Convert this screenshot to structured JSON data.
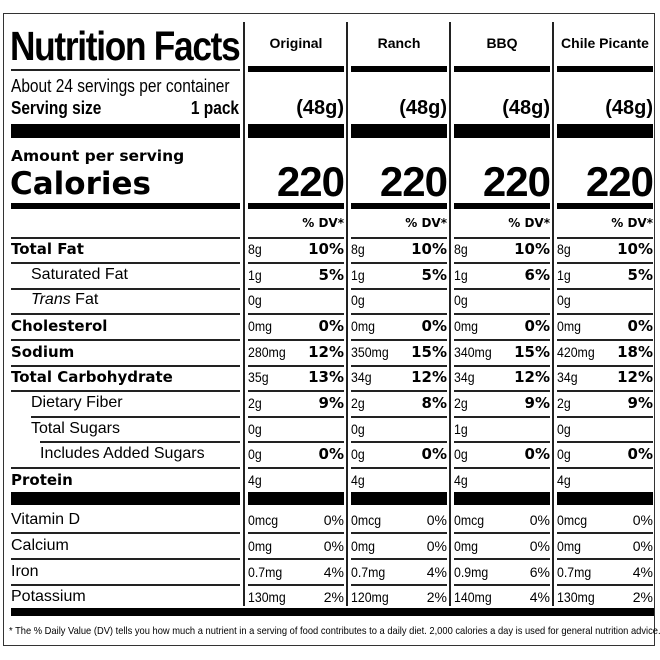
{
  "label": {
    "title": "Nutrition Facts",
    "servings_per_container": "About 24 servings per container",
    "serving_size_label": "Serving size",
    "serving_size_value": "1 pack",
    "amount_per_serving": "Amount per serving",
    "calories_label": "Calories",
    "dv_header": "% DV*",
    "nutrients": [
      {
        "name": "Total Fat",
        "style": "bold"
      },
      {
        "name": "Saturated Fat",
        "style": "indent"
      },
      {
        "name_italic": "Trans",
        "name_rest": " Fat",
        "style": "indent"
      },
      {
        "name": "Cholesterol",
        "style": "bold"
      },
      {
        "name": "Sodium",
        "style": "bold"
      },
      {
        "name": "Total Carbohydrate",
        "style": "bold"
      },
      {
        "name": "Dietary Fiber",
        "style": "indent"
      },
      {
        "name": "Total Sugars",
        "style": "indent"
      },
      {
        "name": "Includes Added Sugars",
        "style": "indent2"
      },
      {
        "name": "Protein",
        "style": "bold"
      }
    ],
    "vitamins": [
      "Vitamin D",
      "Calcium",
      "Iron",
      "Potassium"
    ],
    "footnote": "* The % Daily Value (DV) tells you how much a nutrient in a serving of food contributes to a daily diet. 2,000 calories a day is used for general nutrition advice."
  },
  "columns": [
    {
      "flavor": "Original",
      "serving_grams": "(48g)",
      "calories": "220",
      "nutrients": [
        {
          "amt": "8g",
          "dv": "10%"
        },
        {
          "amt": "1g",
          "dv": "5%"
        },
        {
          "amt": "0g",
          "dv": ""
        },
        {
          "amt": "0mg",
          "dv": "0%"
        },
        {
          "amt": "280mg",
          "dv": "12%"
        },
        {
          "amt": "35g",
          "dv": "13%"
        },
        {
          "amt": "2g",
          "dv": "9%"
        },
        {
          "amt": "0g",
          "dv": ""
        },
        {
          "amt": "0g",
          "dv": "0%"
        },
        {
          "amt": "4g",
          "dv": ""
        }
      ],
      "vitamins": [
        {
          "amt": "0mcg",
          "dv": "0%"
        },
        {
          "amt": "0mg",
          "dv": "0%"
        },
        {
          "amt": "0.7mg",
          "dv": "4%"
        },
        {
          "amt": "130mg",
          "dv": "2%"
        }
      ]
    },
    {
      "flavor": "Ranch",
      "serving_grams": "(48g)",
      "calories": "220",
      "nutrients": [
        {
          "amt": "8g",
          "dv": "10%"
        },
        {
          "amt": "1g",
          "dv": "5%"
        },
        {
          "amt": "0g",
          "dv": ""
        },
        {
          "amt": "0mg",
          "dv": "0%"
        },
        {
          "amt": "350mg",
          "dv": "15%"
        },
        {
          "amt": "34g",
          "dv": "12%"
        },
        {
          "amt": "2g",
          "dv": "8%"
        },
        {
          "amt": "0g",
          "dv": ""
        },
        {
          "amt": "0g",
          "dv": "0%"
        },
        {
          "amt": "4g",
          "dv": ""
        }
      ],
      "vitamins": [
        {
          "amt": "0mcg",
          "dv": "0%"
        },
        {
          "amt": "0mg",
          "dv": "0%"
        },
        {
          "amt": "0.7mg",
          "dv": "4%"
        },
        {
          "amt": "120mg",
          "dv": "2%"
        }
      ]
    },
    {
      "flavor": "BBQ",
      "serving_grams": "(48g)",
      "calories": "220",
      "nutrients": [
        {
          "amt": "8g",
          "dv": "10%"
        },
        {
          "amt": "1g",
          "dv": "6%"
        },
        {
          "amt": "0g",
          "dv": ""
        },
        {
          "amt": "0mg",
          "dv": "0%"
        },
        {
          "amt": "340mg",
          "dv": "15%"
        },
        {
          "amt": "34g",
          "dv": "12%"
        },
        {
          "amt": "2g",
          "dv": "9%"
        },
        {
          "amt": "1g",
          "dv": ""
        },
        {
          "amt": "0g",
          "dv": "0%"
        },
        {
          "amt": "4g",
          "dv": ""
        }
      ],
      "vitamins": [
        {
          "amt": "0mcg",
          "dv": "0%"
        },
        {
          "amt": "0mg",
          "dv": "0%"
        },
        {
          "amt": "0.9mg",
          "dv": "6%"
        },
        {
          "amt": "140mg",
          "dv": "4%"
        }
      ]
    },
    {
      "flavor": "Chile Picante",
      "serving_grams": "(48g)",
      "calories": "220",
      "nutrients": [
        {
          "amt": "8g",
          "dv": "10%"
        },
        {
          "amt": "1g",
          "dv": "5%"
        },
        {
          "amt": "0g",
          "dv": ""
        },
        {
          "amt": "0mg",
          "dv": "0%"
        },
        {
          "amt": "420mg",
          "dv": "18%"
        },
        {
          "amt": "34g",
          "dv": "12%"
        },
        {
          "amt": "2g",
          "dv": "9%"
        },
        {
          "amt": "0g",
          "dv": ""
        },
        {
          "amt": "0g",
          "dv": "0%"
        },
        {
          "amt": "4g",
          "dv": ""
        }
      ],
      "vitamins": [
        {
          "amt": "0mcg",
          "dv": "0%"
        },
        {
          "amt": "0mg",
          "dv": "0%"
        },
        {
          "amt": "0.7mg",
          "dv": "4%"
        },
        {
          "amt": "130mg",
          "dv": "2%"
        }
      ]
    }
  ]
}
